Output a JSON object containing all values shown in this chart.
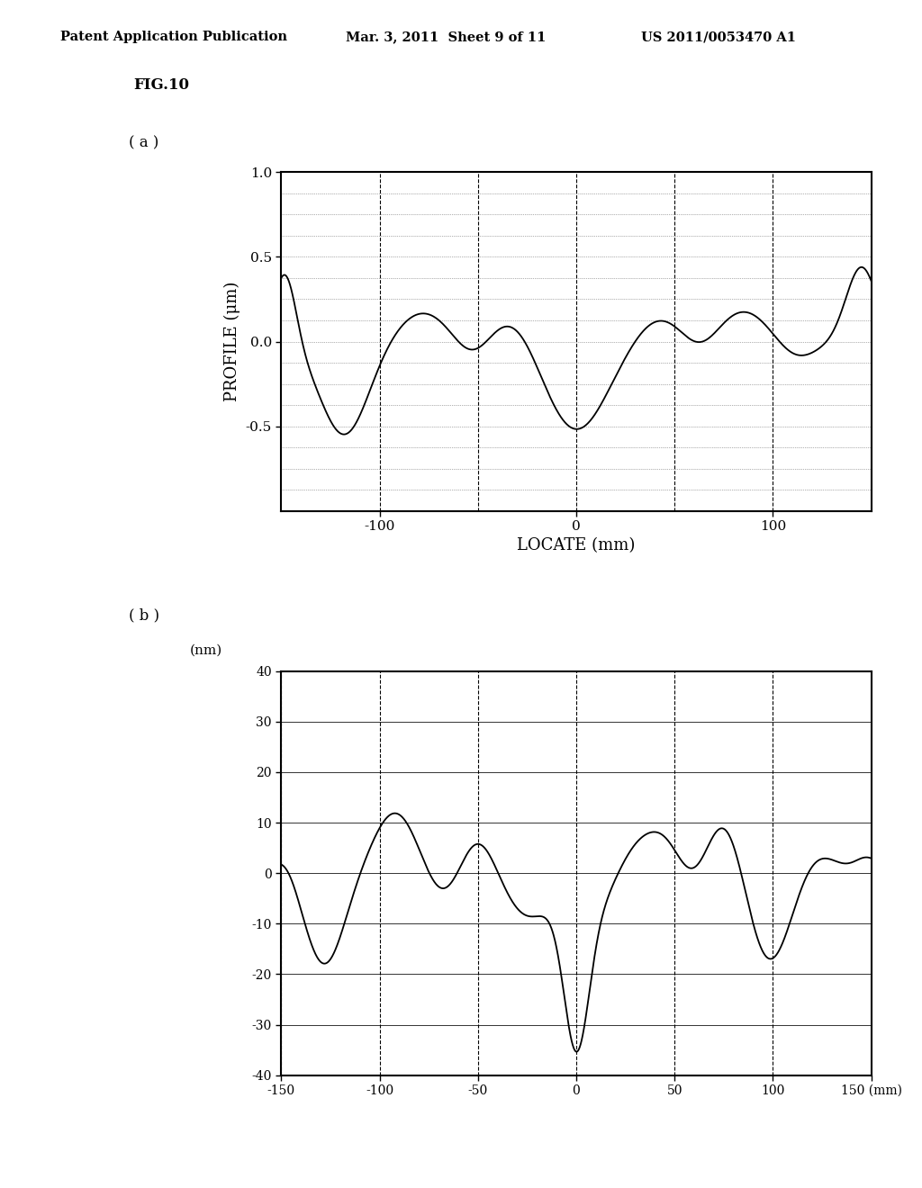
{
  "fig_label": "FIG.10",
  "panel_a_label": "( a )",
  "panel_b_label": "( b )",
  "header_left": "Patent Application Publication",
  "header_mid": "Mar. 3, 2011  Sheet 9 of 11",
  "header_right": "US 2011/0053470 A1",
  "plot_a": {
    "xlabel": "LOCATE (mm)",
    "ylabel": "PROFILE (μm)",
    "xlim": [
      -150,
      150
    ],
    "ylim": [
      -1.0,
      1.0
    ],
    "xticks": [
      -100,
      0,
      100
    ],
    "yticks": [
      -0.5,
      0.0,
      0.5,
      1.0
    ],
    "line_color": "#000000",
    "bg_color": "#ffffff"
  },
  "plot_b": {
    "xlim": [
      -150,
      150
    ],
    "ylim": [
      -40,
      40
    ],
    "xticks": [
      -150,
      -100,
      -50,
      0,
      50,
      100,
      150
    ],
    "yticks": [
      -40,
      -30,
      -20,
      -10,
      0,
      10,
      20,
      30,
      40
    ],
    "line_color": "#000000",
    "bg_color": "#ffffff"
  }
}
